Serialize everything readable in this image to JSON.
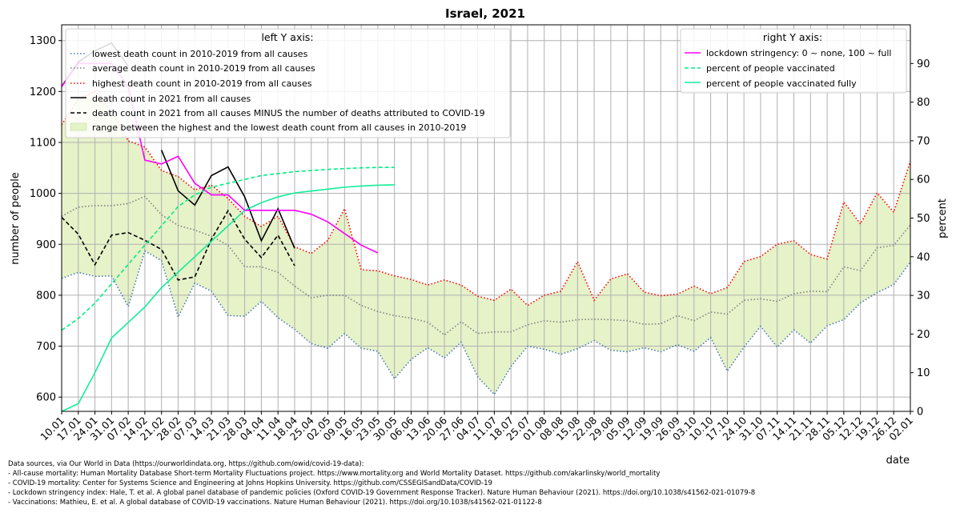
{
  "chart_data": {
    "type": "line",
    "title": "Israel, 2021",
    "xlabel": "date",
    "ylabel_left": "number of people",
    "ylabel_right": "percent",
    "ylim_left": [
      572,
      1331
    ],
    "ylim_right": [
      0,
      100
    ],
    "grid": true,
    "x_ticks": [
      "10.01",
      "17.01",
      "24.01",
      "31.01",
      "07.02",
      "14.02",
      "21.02",
      "28.02",
      "07.03",
      "14.03",
      "21.03",
      "28.03",
      "04.04",
      "11.04",
      "18.04",
      "25.04",
      "02.05",
      "09.05",
      "16.05",
      "23.05",
      "30.05",
      "06.06",
      "13.06",
      "20.06",
      "27.06",
      "04.07",
      "11.07",
      "18.07",
      "25.07",
      "01.08",
      "08.08",
      "15.08",
      "22.08",
      "29.08",
      "05.09",
      "12.09",
      "19.09",
      "26.09",
      "03.10",
      "10.10",
      "17.10",
      "24.10",
      "31.10",
      "07.11",
      "14.11",
      "21.11",
      "28.11",
      "05.12",
      "12.12",
      "19.12",
      "26.12",
      "02.01"
    ],
    "y_ticks_left": [
      600,
      700,
      800,
      900,
      1000,
      1100,
      1200,
      1300
    ],
    "y_ticks_right": [
      0,
      10,
      20,
      30,
      40,
      50,
      60,
      70,
      80,
      90
    ],
    "legend_left": {
      "title": "left Y axis:",
      "placement": "top-left",
      "entries": [
        "lowest death count in 2010-2019 from all causes",
        "average death count in 2010-2019 from all causes",
        "highest death count in 2010-2019 from all causes",
        "death count in 2021 from all causes",
        "death count in 2021 from all causes MINUS the number of deaths attributed to COVID-19",
        "range between the highest and the lowest death count from all causes in 2010-2019"
      ]
    },
    "legend_right": {
      "title": "right Y axis:",
      "placement": "top-right",
      "entries": [
        "lockdown stringency: 0 ~ none, 100 ~ full",
        "percent of people vaccinated",
        "percent of people vaccinated fully"
      ]
    },
    "colors": {
      "lowest": "#4a78b8",
      "average": "#7f7f7f",
      "highest": "#ff0000",
      "deaths2021": "#000000",
      "deaths_minus_covid": "#000000",
      "range_fill": "#e6f2c8",
      "stringency": "#ff00ff",
      "vaccinated": "#00ee88",
      "vaccinated_fully": "#11ee99"
    },
    "series": {
      "lowest": [
        833,
        845,
        837,
        838,
        778,
        887,
        868,
        757,
        824,
        808,
        760,
        759,
        788,
        756,
        733,
        705,
        696,
        725,
        696,
        690,
        636,
        674,
        697,
        677,
        708,
        640,
        605,
        660,
        700,
        694,
        684,
        695,
        711,
        692,
        689,
        697,
        689,
        703,
        690,
        717,
        651,
        698,
        739,
        698,
        732,
        706,
        740,
        752,
        785,
        805,
        821,
        865
      ],
      "average": [
        955,
        973,
        976,
        976,
        980,
        994,
        958,
        937,
        928,
        916,
        898,
        856,
        856,
        845,
        818,
        795,
        800,
        800,
        780,
        768,
        760,
        755,
        747,
        722,
        748,
        725,
        728,
        728,
        742,
        750,
        747,
        752,
        753,
        752,
        750,
        743,
        744,
        760,
        750,
        767,
        763,
        790,
        793,
        788,
        803,
        808,
        807,
        856,
        848,
        893,
        898,
        938
      ],
      "highest": [
        1135,
        1185,
        1200,
        1160,
        1103,
        1091,
        1045,
        1033,
        1007,
        1016,
        990,
        955,
        935,
        955,
        895,
        882,
        908,
        970,
        850,
        848,
        838,
        831,
        820,
        830,
        820,
        798,
        790,
        812,
        780,
        800,
        808,
        866,
        790,
        832,
        842,
        806,
        799,
        802,
        818,
        803,
        815,
        866,
        876,
        900,
        907,
        880,
        871,
        983,
        940,
        1001,
        963,
        1063
      ],
      "deaths2021": [
        1210,
        1258,
        1280,
        1295,
        1250,
        null,
        1085,
        1005,
        977,
        1035,
        1052,
        993,
        907,
        970,
        892
      ],
      "deaths_minus_covid": [
        953,
        920,
        860,
        918,
        923,
        908,
        890,
        830,
        836,
        910,
        966,
        910,
        874,
        918,
        858
      ],
      "stringency": [
        84,
        90,
        90,
        90,
        84,
        65,
        64,
        66,
        59,
        56,
        56,
        52,
        52,
        52,
        52,
        51,
        49,
        46,
        43,
        41
      ],
      "vaccinated": [
        21,
        24,
        28,
        33,
        38,
        43,
        48,
        53,
        56,
        58,
        59,
        60,
        61,
        61.5,
        62,
        62.3,
        62.6,
        62.8,
        63,
        63.1,
        63.1
      ],
      "vaccinated_fully": [
        0,
        2,
        10,
        19,
        23,
        27,
        32,
        36,
        40,
        44,
        48,
        52,
        54,
        55.5,
        56.5,
        57,
        57.5,
        58,
        58.3,
        58.5,
        58.6
      ]
    }
  },
  "sources": {
    "lines": [
      "Data sources, via Our World in Data (https://ourworldindata.org, https://github.com/owid/covid-19-data):",
      "- All-cause mortality: Human Mortality Database Short-term Mortality Fluctuations project. https://www.mortality.org and World Mortality Dataset. https://github.com/akarlinsky/world_mortality",
      "- COVID-19 mortality: Center for Systems Science and Engineering at Johns Hopkins University. https://github.com/CSSEGISandData/COVID-19",
      "- Lockdown stringency index: Hale, T. et al. A global panel database of pandemic policies (Oxford COVID-19 Government Response Tracker). Nature Human Behaviour (2021). https://doi.org/10.1038/s41562-021-01079-8",
      "- Vaccinations: Mathieu, E. et al. A global database of COVID-19 vaccinations. Nature Human Behaviour (2021). https://doi.org/10.1038/s41562-021-01122-8"
    ]
  }
}
